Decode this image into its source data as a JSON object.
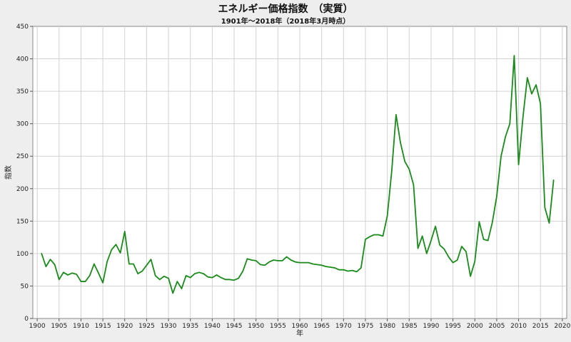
{
  "chart_data": {
    "type": "line",
    "title": "エネルギー価格指数　（実質）",
    "subtitle": "1901年～2018年（2018年3月時点）",
    "xlabel": "年",
    "ylabel": "指数",
    "xlim": [
      1899,
      2021
    ],
    "ylim": [
      0,
      450
    ],
    "x_ticks": [
      1900,
      1905,
      1910,
      1915,
      1920,
      1925,
      1930,
      1935,
      1940,
      1945,
      1950,
      1955,
      1960,
      1965,
      1970,
      1975,
      1980,
      1985,
      1990,
      1995,
      2000,
      2005,
      2010,
      2015,
      2020
    ],
    "y_ticks": [
      0,
      50,
      100,
      150,
      200,
      250,
      300,
      350,
      400,
      450
    ],
    "grid": true,
    "legend": "none",
    "series_color": "#1a8a1a",
    "series": [
      {
        "x": [
          1901,
          1902,
          1903,
          1904,
          1905,
          1906,
          1907,
          1908,
          1909,
          1910,
          1911,
          1912,
          1913,
          1914,
          1915,
          1916,
          1917,
          1918,
          1919,
          1920,
          1921,
          1922,
          1923,
          1924,
          1925,
          1926,
          1927,
          1928,
          1929,
          1930,
          1931,
          1932,
          1933,
          1934,
          1935,
          1936,
          1937,
          1938,
          1939,
          1940,
          1941,
          1942,
          1943,
          1944,
          1945,
          1946,
          1947,
          1948,
          1949,
          1950,
          1951,
          1952,
          1953,
          1954,
          1955,
          1956,
          1957,
          1958,
          1959,
          1960,
          1961,
          1962,
          1963,
          1964,
          1965,
          1966,
          1967,
          1968,
          1969,
          1970,
          1971,
          1972,
          1973,
          1974,
          1975,
          1976,
          1977,
          1978,
          1979,
          1980,
          1981,
          1982,
          1983,
          1984,
          1985,
          1986,
          1987,
          1988,
          1989,
          1990,
          1991,
          1992,
          1993,
          1994,
          1995,
          1996,
          1997,
          1998,
          1999,
          2000,
          2001,
          2002,
          2003,
          2004,
          2005,
          2006,
          2007,
          2008,
          2009,
          2010,
          2011,
          2012,
          2013,
          2014,
          2015,
          2016,
          2017,
          2018
        ],
        "values": [
          100,
          80,
          91,
          83,
          60,
          71,
          67,
          70,
          68,
          57,
          57,
          66,
          84,
          70,
          55,
          88,
          106,
          114,
          101,
          134,
          84,
          84,
          69,
          73,
          82,
          91,
          66,
          60,
          65,
          62,
          39,
          57,
          46,
          66,
          63,
          69,
          71,
          69,
          64,
          63,
          67,
          63,
          60,
          60,
          59,
          62,
          73,
          92,
          90,
          89,
          83,
          82,
          87,
          90,
          89,
          89,
          95,
          90,
          87,
          86,
          86,
          86,
          84,
          83,
          82,
          80,
          79,
          78,
          75,
          75,
          73,
          74,
          72,
          78,
          122,
          126,
          129,
          129,
          127,
          158,
          226,
          314,
          271,
          242,
          230,
          206,
          108,
          127,
          100,
          120,
          142,
          113,
          107,
          95,
          86,
          90,
          111,
          103,
          65,
          88,
          149,
          122,
          120,
          148,
          188,
          250,
          280,
          300,
          405,
          237,
          310,
          371,
          346,
          360,
          331,
          171,
          147,
          213
        ]
      }
    ]
  }
}
